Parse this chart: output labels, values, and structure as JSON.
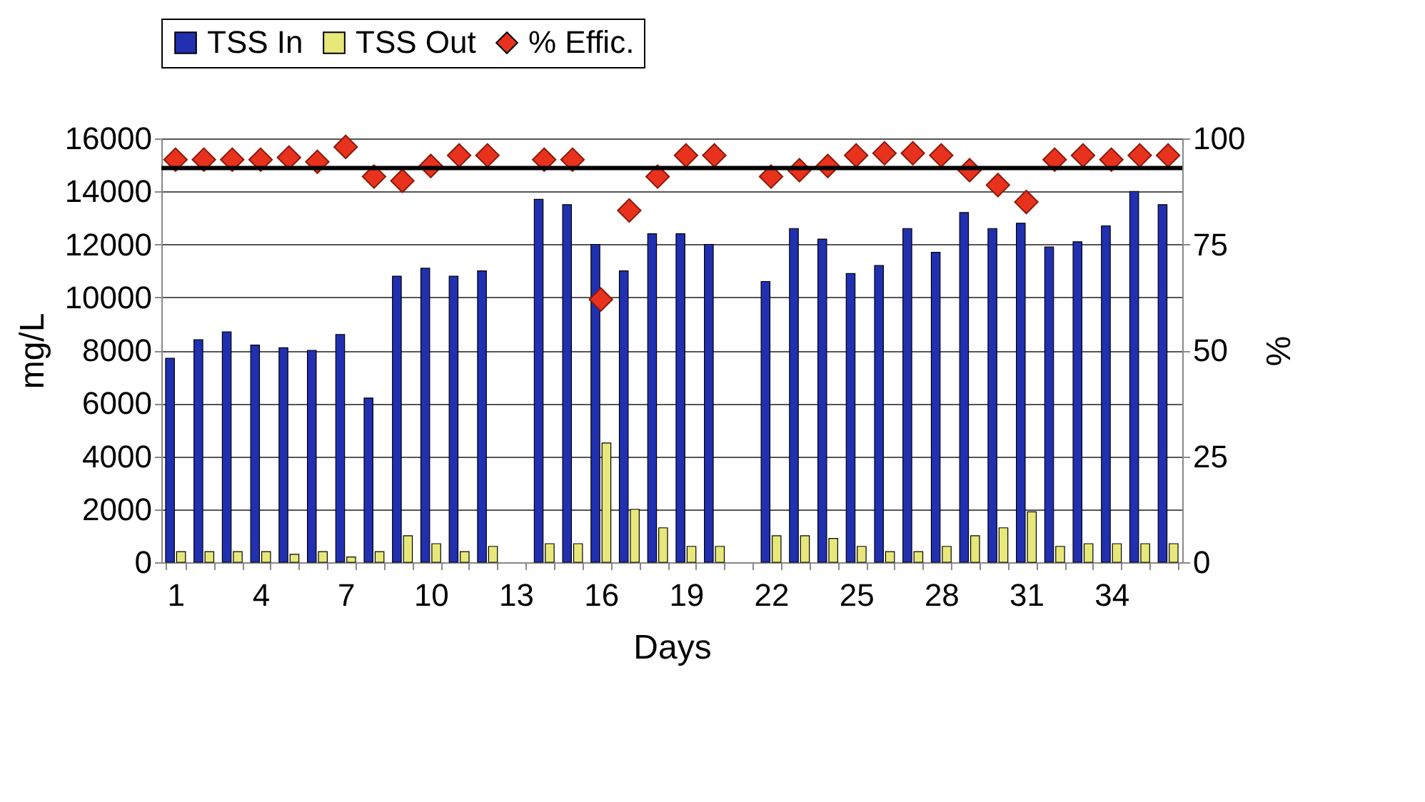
{
  "chart_data": {
    "type": "bar",
    "xlabel": "Days",
    "ylabel": "mg/L",
    "y2label": "%",
    "categories": [
      "1",
      null,
      null,
      "4",
      null,
      null,
      "7",
      null,
      null,
      "10",
      null,
      null,
      "13",
      null,
      null,
      "16",
      null,
      null,
      "19",
      null,
      null,
      "22",
      null,
      null,
      "25",
      null,
      null,
      "28",
      null,
      null,
      "31",
      null,
      null,
      "34",
      null,
      null
    ],
    "series": [
      {
        "name": "TSS In",
        "color": "#2030b0",
        "values": [
          7700,
          8400,
          8700,
          8200,
          8100,
          8000,
          8600,
          6200,
          10800,
          11100,
          10800,
          11000,
          null,
          13700,
          13500,
          12000,
          11000,
          12400,
          12400,
          12000,
          null,
          10600,
          12600,
          12200,
          10900,
          11200,
          12600,
          11700,
          13200,
          12600,
          12800,
          11900,
          12100,
          12700,
          14000,
          13500
        ]
      },
      {
        "name": "TSS Out",
        "color": "#e8e87a",
        "values": [
          400,
          400,
          400,
          400,
          300,
          400,
          200,
          400,
          1000,
          700,
          400,
          600,
          null,
          700,
          700,
          4500,
          2000,
          1300,
          600,
          600,
          null,
          1000,
          1000,
          900,
          600,
          400,
          400,
          600,
          1000,
          1300,
          1900,
          600,
          700,
          700,
          700,
          700
        ]
      },
      {
        "name": "% Effic.",
        "type": "scatter",
        "axis": "y2",
        "color": "#e8321e",
        "values": [
          95,
          95,
          95,
          95,
          95.5,
          94.5,
          98,
          91,
          90,
          93.5,
          96,
          96,
          null,
          95,
          95,
          62,
          83,
          91,
          96,
          96,
          null,
          91,
          92.5,
          93.5,
          96,
          96.5,
          96.5,
          96,
          92.5,
          89,
          85,
          95,
          96,
          95,
          96,
          96
        ]
      }
    ],
    "ylim": [
      0,
      16000
    ],
    "yticks": [
      0,
      2000,
      4000,
      6000,
      8000,
      10000,
      12000,
      14000,
      16000
    ],
    "y2lim": [
      0,
      100
    ],
    "y2ticks": [
      0,
      25,
      50,
      75,
      100
    ],
    "ref_lines": [
      {
        "axis": "y2",
        "value": 93,
        "color": "#000000"
      }
    ],
    "grid": "y",
    "legend": "top",
    "marker": "diamond"
  }
}
